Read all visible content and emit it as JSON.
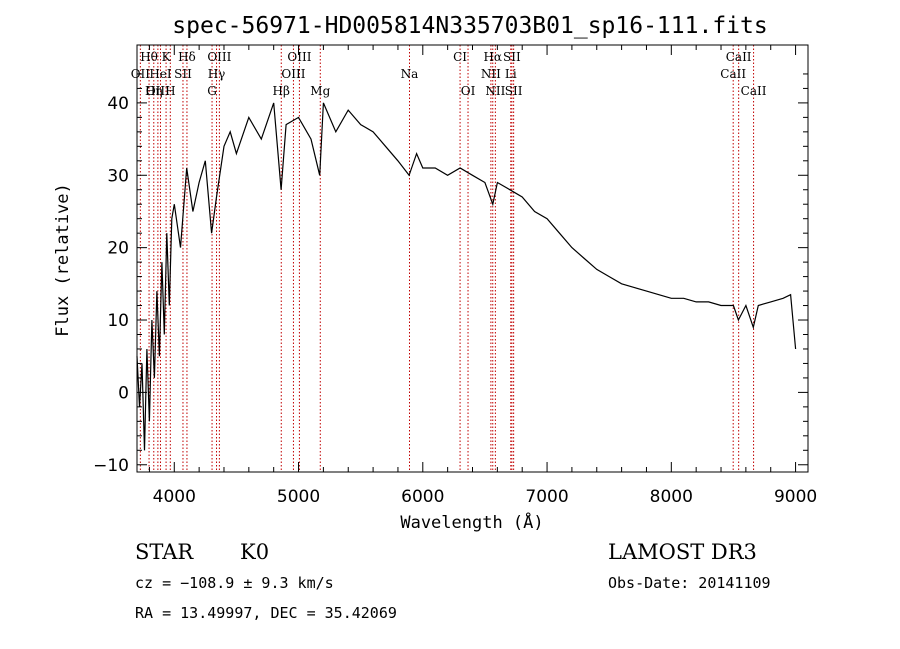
{
  "title": "spec-56971-HD005814N335703B01_sp16-111.fits",
  "info": {
    "class_label": "STAR",
    "subclass": "K0",
    "survey": "LAMOST DR3",
    "cz": "cz = −108.9 ± 9.3 km/s",
    "obs_date": "Obs-Date: 20141109",
    "radec": "RA =  13.49997, DEC =  35.42069"
  },
  "chart_data": {
    "type": "line",
    "xlabel": "Wavelength (Å)",
    "ylabel": "Flux (relative)",
    "xlim": [
      3700,
      9100
    ],
    "ylim": [
      -11,
      48
    ],
    "xticks": [
      4000,
      5000,
      6000,
      7000,
      8000,
      9000
    ],
    "yticks": [
      -10,
      0,
      10,
      20,
      30,
      40
    ],
    "ytick_labels": [
      "−10",
      "0",
      "10",
      "20",
      "30",
      "40"
    ],
    "line_color": "#000000",
    "marker_color": "#c00000",
    "series": [
      {
        "x": [
          3700,
          3720,
          3740,
          3760,
          3780,
          3800,
          3820,
          3840,
          3860,
          3880,
          3900,
          3920,
          3940,
          3960,
          3980,
          4000,
          4050,
          4100,
          4150,
          4200,
          4250,
          4300,
          4340,
          4400,
          4450,
          4500,
          4600,
          4700,
          4800,
          4860,
          4900,
          5000,
          5100,
          5170,
          5200,
          5300,
          5400,
          5500,
          5600,
          5700,
          5800,
          5890,
          5950,
          6000,
          6100,
          6200,
          6300,
          6400,
          6500,
          6563,
          6600,
          6700,
          6800,
          6900,
          7000,
          7100,
          7200,
          7300,
          7400,
          7500,
          7600,
          7700,
          7800,
          7900,
          8000,
          8100,
          8200,
          8300,
          8400,
          8500,
          8540,
          8600,
          8660,
          8700,
          8800,
          8900,
          8960,
          9000
        ],
        "y": [
          5,
          -2,
          4,
          -8,
          6,
          -4,
          10,
          2,
          14,
          5,
          18,
          8,
          22,
          12,
          24,
          26,
          20,
          31,
          25,
          29,
          32,
          22,
          27,
          34,
          36,
          33,
          38,
          35,
          40,
          28,
          37,
          38,
          35,
          30,
          40,
          36,
          39,
          37,
          36,
          34,
          32,
          30,
          33,
          31,
          31,
          30,
          31,
          30,
          29,
          26,
          29,
          28,
          27,
          25,
          24,
          22,
          20,
          18.5,
          17,
          16,
          15,
          14.5,
          14,
          13.5,
          13,
          13,
          12.5,
          12.5,
          12,
          12,
          10,
          12,
          9,
          12,
          12.5,
          13,
          13.5,
          6
        ]
      }
    ],
    "spectral_lines": [
      {
        "label": "Hθ",
        "wl": 3797,
        "row": 1
      },
      {
        "label": "K",
        "wl": 3934,
        "row": 1
      },
      {
        "label": "Hδ",
        "wl": 4102,
        "row": 1
      },
      {
        "label": "OIII",
        "wl": 4363,
        "row": 1
      },
      {
        "label": "OIII",
        "wl": 5007,
        "row": 1
      },
      {
        "label": "CI",
        "wl": 6300,
        "row": 1
      },
      {
        "label": "Hα",
        "wl": 6563,
        "row": 1
      },
      {
        "label": "SII",
        "wl": 6717,
        "row": 1
      },
      {
        "label": "CaII",
        "wl": 8542,
        "row": 1
      },
      {
        "label": "OII",
        "wl": 3727,
        "row": 2
      },
      {
        "label": "HeI",
        "wl": 3889,
        "row": 2
      },
      {
        "label": "SII",
        "wl": 4070,
        "row": 2
      },
      {
        "label": "Hγ",
        "wl": 4340,
        "row": 2
      },
      {
        "label": "OIII",
        "wl": 4959,
        "row": 2
      },
      {
        "label": "Na",
        "wl": 5893,
        "row": 2
      },
      {
        "label": "NII",
        "wl": 6548,
        "row": 2
      },
      {
        "label": "Li",
        "wl": 6708,
        "row": 2
      },
      {
        "label": "CaII",
        "wl": 8498,
        "row": 2
      },
      {
        "label": "OIII",
        "wl": 3868,
        "row": 3
      },
      {
        "label": "Hη",
        "wl": 3835,
        "row": 3
      },
      {
        "label": "H",
        "wl": 3968,
        "row": 3
      },
      {
        "label": "G",
        "wl": 4304,
        "row": 3
      },
      {
        "label": "Hβ",
        "wl": 4861,
        "row": 3
      },
      {
        "label": "Mg",
        "wl": 5175,
        "row": 3
      },
      {
        "label": "OI",
        "wl": 6364,
        "row": 3
      },
      {
        "label": "NII",
        "wl": 6584,
        "row": 3
      },
      {
        "label": "SII",
        "wl": 6731,
        "row": 3
      },
      {
        "label": "CaII",
        "wl": 8662,
        "row": 3
      }
    ]
  }
}
